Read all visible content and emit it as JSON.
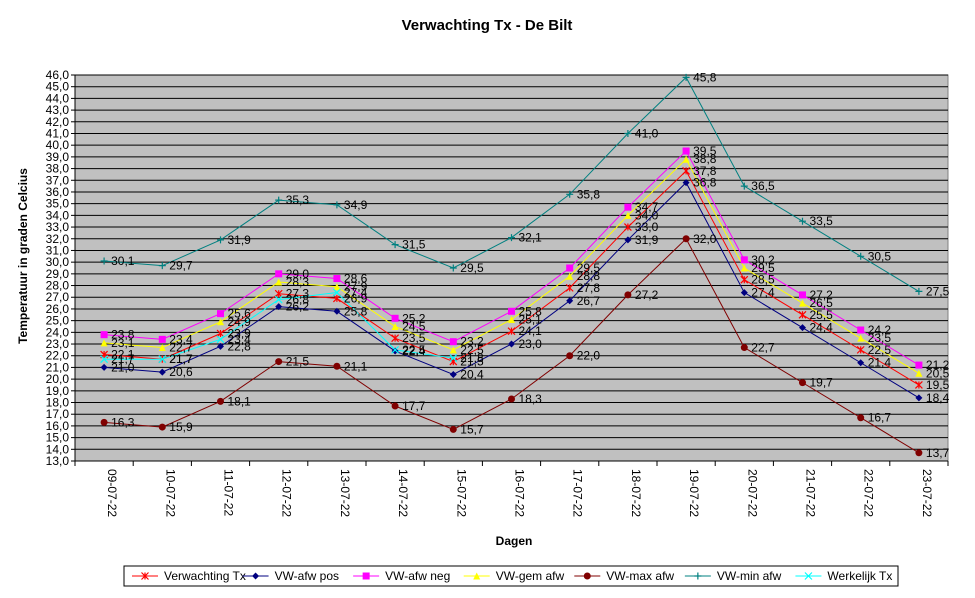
{
  "chart_data": {
    "type": "line",
    "title": "Verwachting Tx - De Bilt",
    "xlabel": "Dagen",
    "ylabel": "Temperatuur in graden Celcius",
    "ylim": [
      13.0,
      46.0
    ],
    "ytick_step": 1.0,
    "grid": true,
    "legend_position": "bottom",
    "plot_background": "#c0c0c0",
    "categories": [
      "09-07-22",
      "10-07-22",
      "11-07-22",
      "12-07-22",
      "13-07-22",
      "14-07-22",
      "15-07-22",
      "16-07-22",
      "17-07-22",
      "18-07-22",
      "19-07-22",
      "20-07-22",
      "21-07-22",
      "22-07-22",
      "23-07-22"
    ],
    "series": [
      {
        "name": "Verwachting Tx",
        "color": "#ff0000",
        "marker": "star",
        "values": [
          22.1,
          21.7,
          23.9,
          27.3,
          26.9,
          23.5,
          21.5,
          24.1,
          27.8,
          33.0,
          37.8,
          28.5,
          25.5,
          22.5,
          19.5
        ]
      },
      {
        "name": "VW-afw pos",
        "color": "#000080",
        "marker": "diamond",
        "values": [
          21.0,
          20.6,
          22.8,
          26.2,
          25.8,
          22.4,
          20.4,
          23.0,
          26.7,
          31.9,
          36.8,
          27.4,
          24.4,
          21.4,
          18.4
        ]
      },
      {
        "name": "VW-afw neg",
        "color": "#ff00ff",
        "marker": "square",
        "values": [
          23.8,
          23.4,
          25.6,
          29.0,
          28.6,
          25.2,
          23.2,
          25.8,
          29.5,
          34.7,
          39.5,
          30.2,
          27.2,
          24.2,
          21.2
        ]
      },
      {
        "name": "VW-gem afw",
        "color": "#ffff00",
        "marker": "triangle",
        "values": [
          23.1,
          22.7,
          24.9,
          28.3,
          27.9,
          24.5,
          22.5,
          25.1,
          28.8,
          34.0,
          38.8,
          29.5,
          26.5,
          23.5,
          20.5
        ]
      },
      {
        "name": "VW-max afw",
        "color": "#800000",
        "marker": "circle",
        "values": [
          16.3,
          15.9,
          18.1,
          21.5,
          21.1,
          17.7,
          15.7,
          18.3,
          22.0,
          27.2,
          32.0,
          22.7,
          19.7,
          16.7,
          13.7
        ]
      },
      {
        "name": "VW-min afw",
        "color": "#008080",
        "marker": "plus",
        "values": [
          30.1,
          29.7,
          31.9,
          35.3,
          34.9,
          31.5,
          29.5,
          32.1,
          35.8,
          41.0,
          45.8,
          36.5,
          33.5,
          30.5,
          27.5
        ]
      },
      {
        "name": "Werkelijk Tx",
        "color": "#00ffff",
        "marker": "x",
        "values": [
          21.7,
          21.7,
          23.4,
          26.8,
          27.4,
          22.5,
          21.8,
          null,
          null,
          null,
          null,
          null,
          null,
          null,
          null
        ],
        "labels": [
          "21.7",
          "21.7",
          "23.4",
          "26.8",
          "27.4",
          "22.5",
          "21.8",
          null,
          null,
          null,
          null,
          null,
          null,
          null,
          null
        ]
      }
    ]
  }
}
